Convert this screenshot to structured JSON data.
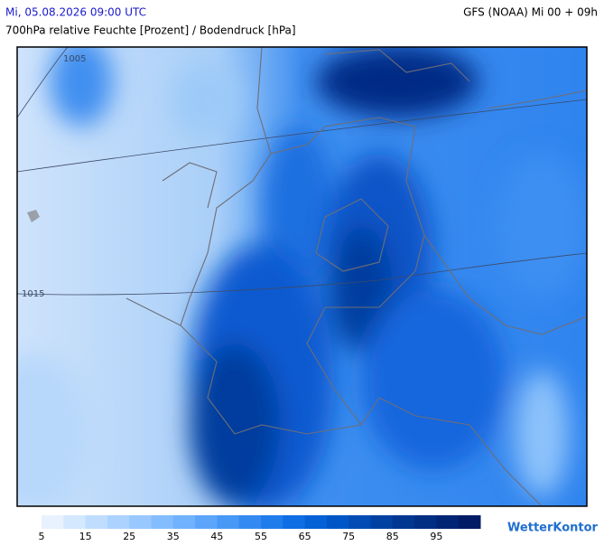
{
  "header": {
    "datetime": "Mi, 05.08.2026 09:00 UTC",
    "model": "GFS (NOAA) Mi 00 + 09h",
    "subtitle": "700hPa relative Feuchte [Prozent] / Bodendruck [hPa]"
  },
  "map": {
    "isobar_labels": [
      "1005",
      "1015"
    ]
  },
  "legend": {
    "labels": [
      5,
      15,
      25,
      35,
      45,
      55,
      65,
      75,
      85,
      95
    ],
    "colors": [
      "#e8f2ff",
      "#d4e8ff",
      "#c0ddff",
      "#acd3ff",
      "#98c8ff",
      "#84bdff",
      "#70b2fd",
      "#5ca5fa",
      "#4898f6",
      "#348af1",
      "#207ceb",
      "#0f6ee3",
      "#0562d6",
      "#0056c6",
      "#004bb4",
      "#0041a2",
      "#003791",
      "#002e82",
      "#002574",
      "#001c66"
    ]
  },
  "logo": "WetterKontor"
}
